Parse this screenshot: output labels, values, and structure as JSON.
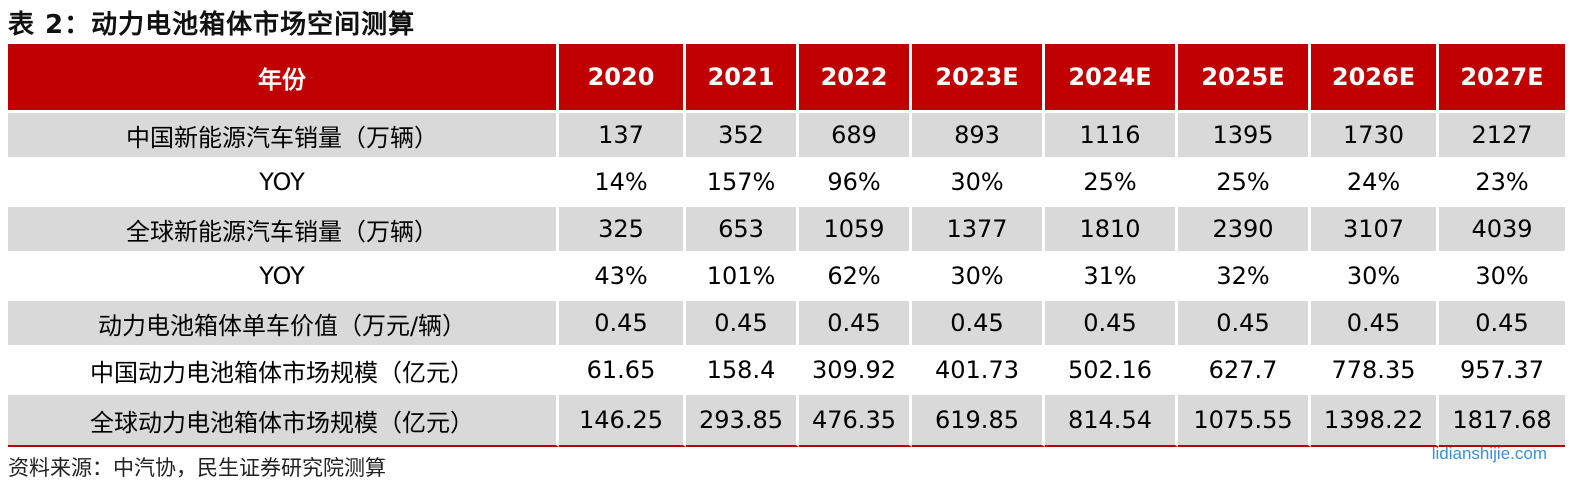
{
  "title": "表 2：动力电池箱体市场空间测算",
  "header": [
    "年份",
    "2020",
    "2021",
    "2022",
    "2023E",
    "2024E",
    "2025E",
    "2026E",
    "2027E"
  ],
  "rows": [
    {
      "label": "中国新能源汽车销量（万辆）",
      "values": [
        "137",
        "352",
        "689",
        "893",
        "1116",
        "1395",
        "1730",
        "2127"
      ]
    },
    {
      "label": "YOY",
      "values": [
        "14%",
        "157%",
        "96%",
        "30%",
        "25%",
        "25%",
        "24%",
        "23%"
      ]
    },
    {
      "label": "全球新能源汽车销量（万辆）",
      "values": [
        "325",
        "653",
        "1059",
        "1377",
        "1810",
        "2390",
        "3107",
        "4039"
      ]
    },
    {
      "label": "YOY",
      "values": [
        "43%",
        "101%",
        "62%",
        "30%",
        "31%",
        "32%",
        "30%",
        "30%"
      ]
    },
    {
      "label": "动力电池箱体单车价值（万元/辆）",
      "values": [
        "0.45",
        "0.45",
        "0.45",
        "0.45",
        "0.45",
        "0.45",
        "0.45",
        "0.45"
      ]
    },
    {
      "label": "中国动力电池箱体市场规模（亿元）",
      "values": [
        "61.65",
        "158.4",
        "309.92",
        "401.73",
        "502.16",
        "627.7",
        "778.35",
        "957.37"
      ]
    },
    {
      "label": "全球动力电池箱体市场规模（亿元）",
      "values": [
        "146.25",
        "293.85",
        "476.35",
        "619.85",
        "814.54",
        "1075.55",
        "1398.22",
        "1817.68"
      ]
    }
  ],
  "source": "资料来源：中汽协，民生证券研究院测算",
  "watermark": "lidianshijie.com",
  "colors": {
    "header_bg": "#c00000",
    "stripe": "#d9d9d9",
    "watermark": "#3a8fd8"
  }
}
